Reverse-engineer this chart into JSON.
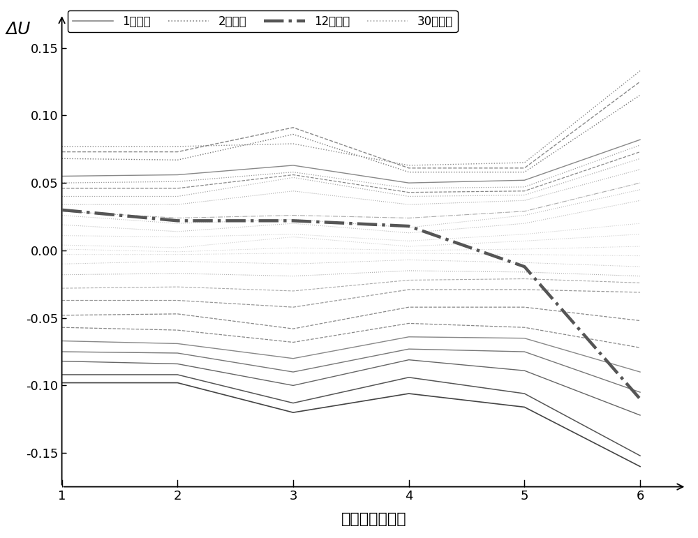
{
  "x": [
    1,
    2,
    3,
    4,
    5,
    6
  ],
  "xlabel": "可用充电段编号",
  "ylabel": "ΔU",
  "ylim": [
    -0.175,
    0.175
  ],
  "xlim": [
    1.0,
    6.4
  ],
  "yticks": [
    -0.15,
    -0.1,
    -0.05,
    0.0,
    0.05,
    0.1,
    0.15
  ],
  "xticks": [
    1,
    2,
    3,
    4,
    5,
    6
  ],
  "background_color": "#ffffff",
  "series": [
    {
      "values": [
        0.077,
        0.077,
        0.079,
        0.063,
        0.065,
        0.133
      ],
      "style": "dotted",
      "color": "#888888",
      "lw": 1.0
    },
    {
      "values": [
        0.073,
        0.073,
        0.091,
        0.061,
        0.061,
        0.125
      ],
      "style": "dashed",
      "color": "#888888",
      "lw": 1.0
    },
    {
      "values": [
        0.068,
        0.067,
        0.086,
        0.058,
        0.058,
        0.115
      ],
      "style": "dotted",
      "color": "#777777",
      "lw": 1.0
    },
    {
      "values": [
        0.055,
        0.056,
        0.063,
        0.05,
        0.052,
        0.082
      ],
      "style": "solid",
      "color": "#888888",
      "lw": 1.0
    },
    {
      "values": [
        0.05,
        0.051,
        0.058,
        0.046,
        0.047,
        0.078
      ],
      "style": "dotted",
      "color": "#999999",
      "lw": 0.9
    },
    {
      "values": [
        0.046,
        0.046,
        0.056,
        0.043,
        0.044,
        0.073
      ],
      "style": "dashed",
      "color": "#888888",
      "lw": 0.9
    },
    {
      "values": [
        0.04,
        0.04,
        0.054,
        0.04,
        0.041,
        0.068
      ],
      "style": "dotted",
      "color": "#aaaaaa",
      "lw": 0.9
    },
    {
      "values": [
        0.034,
        0.034,
        0.044,
        0.034,
        0.037,
        0.06
      ],
      "style": "dotted",
      "color": "#aaaaaa",
      "lw": 0.8
    },
    {
      "values": [
        0.029,
        0.024,
        0.026,
        0.024,
        0.029,
        0.05
      ],
      "style": "dashdot",
      "color": "#aaaaaa",
      "lw": 0.8
    },
    {
      "values": [
        0.026,
        0.02,
        0.023,
        0.017,
        0.026,
        0.045
      ],
      "style": "dotted",
      "color": "#bbbbbb",
      "lw": 0.8
    },
    {
      "values": [
        0.019,
        0.014,
        0.02,
        0.013,
        0.02,
        0.037
      ],
      "style": "dotted",
      "color": "#bbbbbb",
      "lw": 0.8
    },
    {
      "values": [
        0.011,
        0.01,
        0.012,
        0.007,
        0.012,
        0.02
      ],
      "style": "dotted",
      "color": "#cccccc",
      "lw": 0.8
    },
    {
      "values": [
        0.004,
        0.002,
        0.01,
        0.003,
        0.007,
        0.012
      ],
      "style": "dotted",
      "color": "#cccccc",
      "lw": 0.8
    },
    {
      "values": [
        0.001,
        -0.001,
        0.002,
        0.0,
        0.001,
        0.003
      ],
      "style": "dotted",
      "color": "#cccccc",
      "lw": 0.7
    },
    {
      "values": [
        -0.003,
        -0.003,
        -0.002,
        -0.002,
        -0.003,
        -0.004
      ],
      "style": "dotted",
      "color": "#cccccc",
      "lw": 0.7
    },
    {
      "values": [
        -0.01,
        -0.008,
        -0.01,
        -0.007,
        -0.009,
        -0.012
      ],
      "style": "dotted",
      "color": "#bbbbbb",
      "lw": 0.7
    },
    {
      "values": [
        -0.018,
        -0.017,
        -0.019,
        -0.015,
        -0.016,
        -0.019
      ],
      "style": "dotted",
      "color": "#aaaaaa",
      "lw": 0.8
    },
    {
      "values": [
        -0.028,
        -0.027,
        -0.03,
        -0.022,
        -0.021,
        -0.024
      ],
      "style": "dashed",
      "color": "#aaaaaa",
      "lw": 0.8
    },
    {
      "values": [
        -0.037,
        -0.037,
        -0.042,
        -0.029,
        -0.029,
        -0.031
      ],
      "style": "dashed",
      "color": "#999999",
      "lw": 0.9
    },
    {
      "values": [
        -0.048,
        -0.047,
        -0.058,
        -0.042,
        -0.042,
        -0.052
      ],
      "style": "dashed",
      "color": "#888888",
      "lw": 0.9
    },
    {
      "values": [
        -0.057,
        -0.059,
        -0.068,
        -0.054,
        -0.057,
        -0.072
      ],
      "style": "dashed",
      "color": "#888888",
      "lw": 0.9
    },
    {
      "values": [
        -0.067,
        -0.069,
        -0.08,
        -0.064,
        -0.065,
        -0.09
      ],
      "style": "solid",
      "color": "#888888",
      "lw": 1.0
    },
    {
      "values": [
        -0.075,
        -0.076,
        -0.09,
        -0.073,
        -0.075,
        -0.105
      ],
      "style": "solid",
      "color": "#777777",
      "lw": 1.0
    },
    {
      "values": [
        -0.082,
        -0.084,
        -0.1,
        -0.081,
        -0.089,
        -0.122
      ],
      "style": "solid",
      "color": "#666666",
      "lw": 1.0
    },
    {
      "values": [
        -0.092,
        -0.092,
        -0.113,
        -0.094,
        -0.106,
        -0.152
      ],
      "style": "solid",
      "color": "#555555",
      "lw": 1.1
    },
    {
      "values": [
        -0.098,
        -0.098,
        -0.12,
        -0.106,
        -0.116,
        -0.16
      ],
      "style": "solid",
      "color": "#444444",
      "lw": 1.2
    }
  ],
  "battery12": [
    0.03,
    0.022,
    0.022,
    0.018,
    -0.012,
    -0.11
  ],
  "battery12_style": "dashdot",
  "battery12_color": "#555555",
  "battery12_lw": 3.2,
  "legend_entries": [
    {
      "label": "1号电池",
      "style": "solid",
      "color": "#888888",
      "lw": 1.2
    },
    {
      "label": "2号电池",
      "style": "dotted",
      "color": "#888888",
      "lw": 1.2
    },
    {
      "label": "12号电池",
      "style": "dashdot",
      "color": "#555555",
      "lw": 3.2
    },
    {
      "label": "30号电池",
      "style": "dotted",
      "color": "#aaaaaa",
      "lw": 1.2
    }
  ]
}
